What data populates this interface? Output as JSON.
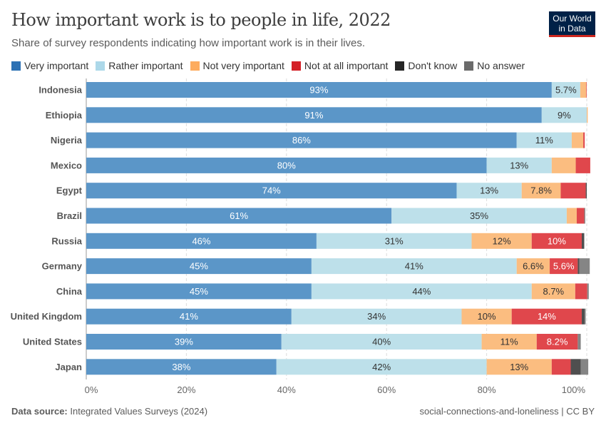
{
  "title": "How important work is to people in life, 2022",
  "subtitle": "Share of survey respondents indicating how important work is in their lives.",
  "logo": "Our World in Data",
  "footer": {
    "source_label": "Data source:",
    "source": "Integrated Values Surveys (2024)",
    "right": "social-connections-and-loneliness | CC BY"
  },
  "chart_data": {
    "type": "bar",
    "orientation": "horizontal-stacked",
    "xlim": [
      0,
      100
    ],
    "x_ticks": [
      "0%",
      "20%",
      "40%",
      "60%",
      "80%",
      "100%"
    ],
    "grid": true,
    "legend_position": "top",
    "categories": [
      "Indonesia",
      "Ethiopia",
      "Nigeria",
      "Mexico",
      "Egypt",
      "Brazil",
      "Russia",
      "Germany",
      "China",
      "United Kingdom",
      "United States",
      "Japan"
    ],
    "series": [
      {
        "name": "Very important",
        "color": "#5b96c8",
        "label_color": "#ffffff",
        "values": [
          93,
          91,
          86,
          80,
          74,
          61,
          46,
          45,
          45,
          41,
          39,
          38
        ],
        "labels": [
          "93%",
          "91%",
          "86%",
          "80%",
          "74%",
          "61%",
          "46%",
          "45%",
          "45%",
          "41%",
          "39%",
          "38%"
        ]
      },
      {
        "name": "Rather important",
        "color": "#bde0ea",
        "label_color": "#333333",
        "values": [
          5.7,
          9,
          11,
          13,
          13,
          35,
          31,
          41,
          44,
          34,
          40,
          42
        ],
        "labels": [
          "5.7%",
          "9%",
          "11%",
          "13%",
          "13%",
          "35%",
          "31%",
          "41%",
          "44%",
          "34%",
          "40%",
          "42%"
        ]
      },
      {
        "name": "Not very important",
        "color": "#fbbd80",
        "label_color": "#333333",
        "values": [
          1.2,
          0.2,
          2.3,
          4.8,
          7.8,
          2,
          12,
          6.6,
          8.7,
          10,
          11,
          13
        ],
        "labels": [
          "",
          "",
          "",
          "",
          "7.8%",
          "",
          "12%",
          "6.6%",
          "8.7%",
          "10%",
          "11%",
          "13%"
        ]
      },
      {
        "name": "Not at all important",
        "color": "#e0474c",
        "label_color": "#ffffff",
        "values": [
          0.1,
          0,
          0.3,
          2.9,
          5,
          1.5,
          10,
          5.6,
          2.4,
          14,
          8.2,
          3.8
        ],
        "labels": [
          "",
          "",
          "",
          "",
          "",
          "",
          "10%",
          "5.6%",
          "",
          "14%",
          "8.2%",
          ""
        ]
      },
      {
        "name": "Don't know",
        "color": "#4f4f4f",
        "label_color": "#ffffff",
        "values": [
          0,
          0,
          0,
          0,
          0.2,
          0,
          0.5,
          0.3,
          0,
          0.6,
          0,
          2
        ],
        "labels": [
          "",
          "",
          "",
          "",
          "",
          "",
          "",
          "",
          "",
          "",
          "",
          ""
        ]
      },
      {
        "name": "No answer",
        "color": "#858585",
        "label_color": "#ffffff",
        "values": [
          0,
          0,
          0,
          0,
          0,
          0.2,
          0,
          2.1,
          0.3,
          0.2,
          0.6,
          1.5
        ],
        "labels": [
          "",
          "",
          "",
          "",
          "",
          "",
          "",
          "",
          "",
          "",
          "",
          ""
        ]
      }
    ],
    "legend_colors": [
      "#2d71b4",
      "#acd8e9",
      "#fdac5f",
      "#d42027",
      "#262626",
      "#6b6b6b"
    ]
  }
}
